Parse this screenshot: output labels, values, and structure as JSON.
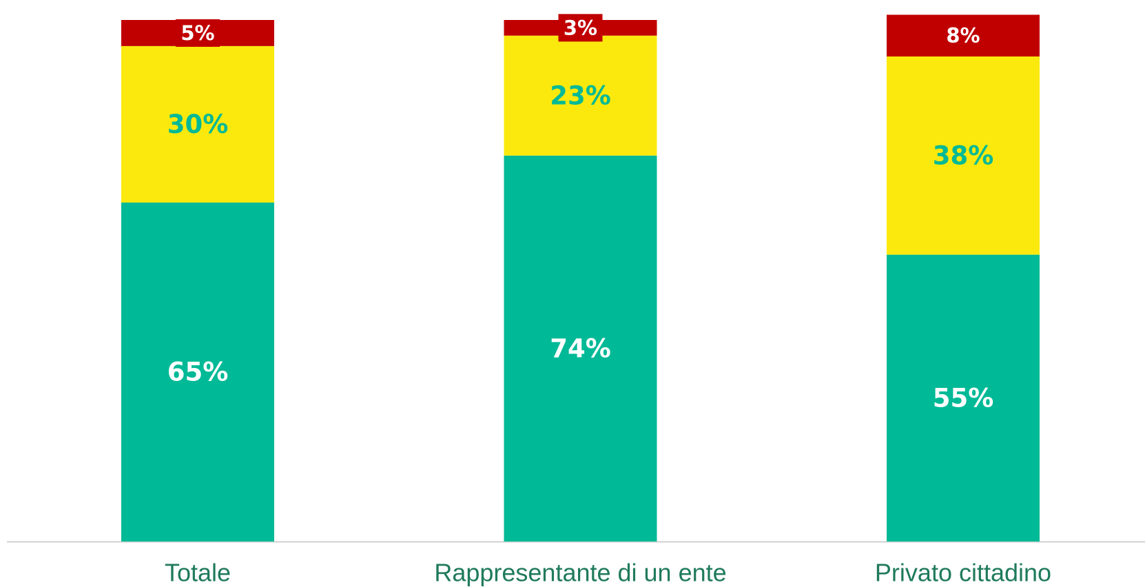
{
  "chart_data": {
    "type": "stacked_bar",
    "categories": [
      "Totale",
      "Rappresentante di un ente",
      "Privato cittadino"
    ],
    "series": [
      {
        "color": "#00b996",
        "label_color": "#ffffff",
        "values": [
          65,
          74,
          55
        ],
        "value_labels": [
          "65%",
          "74%",
          "55%"
        ]
      },
      {
        "color": "#fbe90d",
        "label_color": "#00b996",
        "values": [
          30,
          23,
          38
        ],
        "value_labels": [
          "30%",
          "23%",
          "38%"
        ]
      },
      {
        "color": "#c00000",
        "label_color": "#ffffff",
        "values": [
          5,
          3,
          8
        ],
        "value_labels": [
          "5%",
          "3%",
          "8%"
        ]
      }
    ],
    "ylim": [
      0,
      100
    ]
  }
}
